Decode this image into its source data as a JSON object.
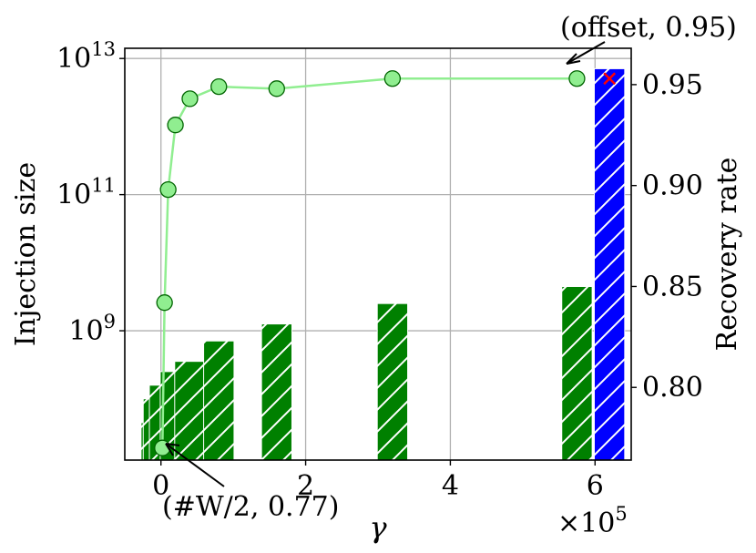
{
  "chart_data": {
    "type": "bar+line",
    "xlabel": "γ",
    "x_multiplier": "×10",
    "x_multiplier_exp": "5",
    "xlim": [
      -0.5,
      6.5
    ],
    "x_ticks": [
      {
        "v": 0,
        "label": "0"
      },
      {
        "v": 2,
        "label": "2"
      },
      {
        "v": 4,
        "label": "4"
      },
      {
        "v": 6,
        "label": "6"
      }
    ],
    "left_axis": {
      "label": "Injection size",
      "scale": "log",
      "ylim_log10": [
        7.1,
        13.15
      ],
      "ticks": [
        {
          "exp": 9,
          "base": "10",
          "sup": "9"
        },
        {
          "exp": 11,
          "base": "10",
          "sup": "11"
        },
        {
          "exp": 13,
          "base": "10",
          "sup": "13"
        }
      ]
    },
    "right_axis": {
      "label": "Recovery rate",
      "ylim": [
        0.764,
        0.968
      ],
      "ticks": [
        {
          "v": 0.8,
          "label": "0.80"
        },
        {
          "v": 0.85,
          "label": "0.85"
        },
        {
          "v": 0.9,
          "label": "0.90"
        },
        {
          "v": 0.95,
          "label": "0.95"
        }
      ]
    },
    "bars_green": [
      {
        "x": -0.065,
        "log10": 7.65
      },
      {
        "x": -0.035,
        "log10": 8.0
      },
      {
        "x": 0.05,
        "log10": 8.2
      },
      {
        "x": 0.2,
        "log10": 8.4
      },
      {
        "x": 0.4,
        "log10": 8.55
      },
      {
        "x": 0.8,
        "log10": 8.85
      },
      {
        "x": 1.6,
        "log10": 9.1
      },
      {
        "x": 3.2,
        "log10": 9.4
      },
      {
        "x": 5.75,
        "log10": 9.65
      }
    ],
    "bar_width": 0.42,
    "bar_blue": {
      "x": 6.2,
      "log10": 12.85
    },
    "recovery_series": {
      "x": [
        0.02,
        0.05,
        0.1,
        0.2,
        0.4,
        0.8,
        1.6,
        3.2,
        5.75
      ],
      "y": [
        0.77,
        0.842,
        0.898,
        0.93,
        0.943,
        0.949,
        0.948,
        0.953,
        0.953
      ]
    },
    "offset_marker": {
      "x": 6.2,
      "y": 0.953
    },
    "annotations": [
      {
        "text": "(offset, 0.95)"
      },
      {
        "text": "(#W/2, 0.77)"
      }
    ],
    "colors": {
      "green_bar": "#008000",
      "blue_bar": "#0000ff",
      "line": "#90ee90",
      "marker_edge": "#006400",
      "offset_marker": "#ff0000",
      "grid": "#b0b0b0"
    },
    "grid": true
  }
}
